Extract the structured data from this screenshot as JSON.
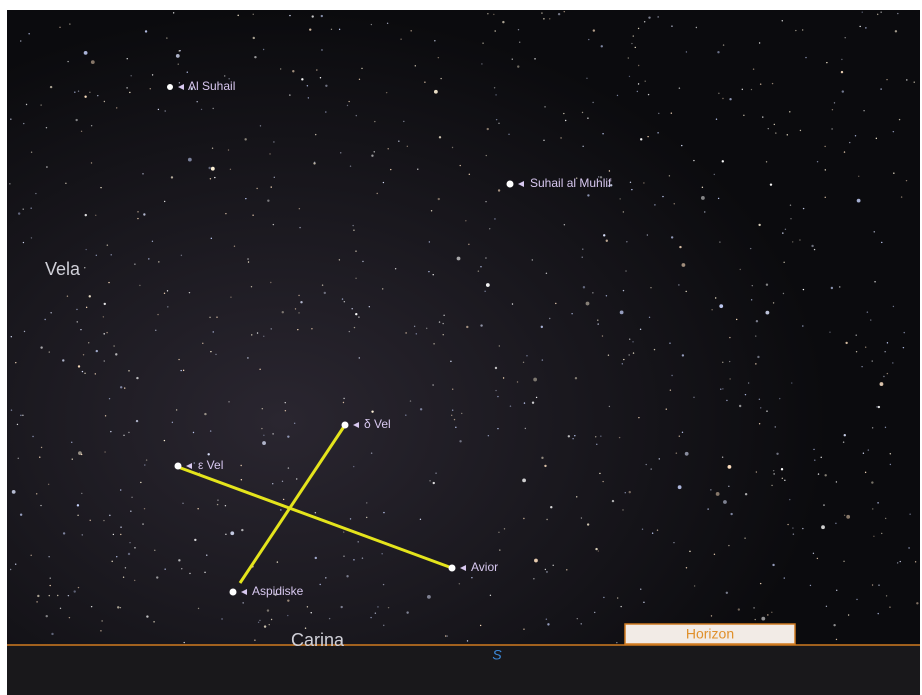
{
  "labels": {
    "al_suhail": "Al Suhail",
    "suhail_al_muhlif": "Suhail al Muhlif",
    "delta_vel": "δ Vel",
    "epsilon_vel": "ε Vel",
    "avior": "Avior",
    "aspidiske": "Aspidiske"
  },
  "constellations": {
    "vela": "Vela",
    "carina": "Carina"
  },
  "horizon": {
    "label": "Horizon",
    "direction": "S"
  }
}
